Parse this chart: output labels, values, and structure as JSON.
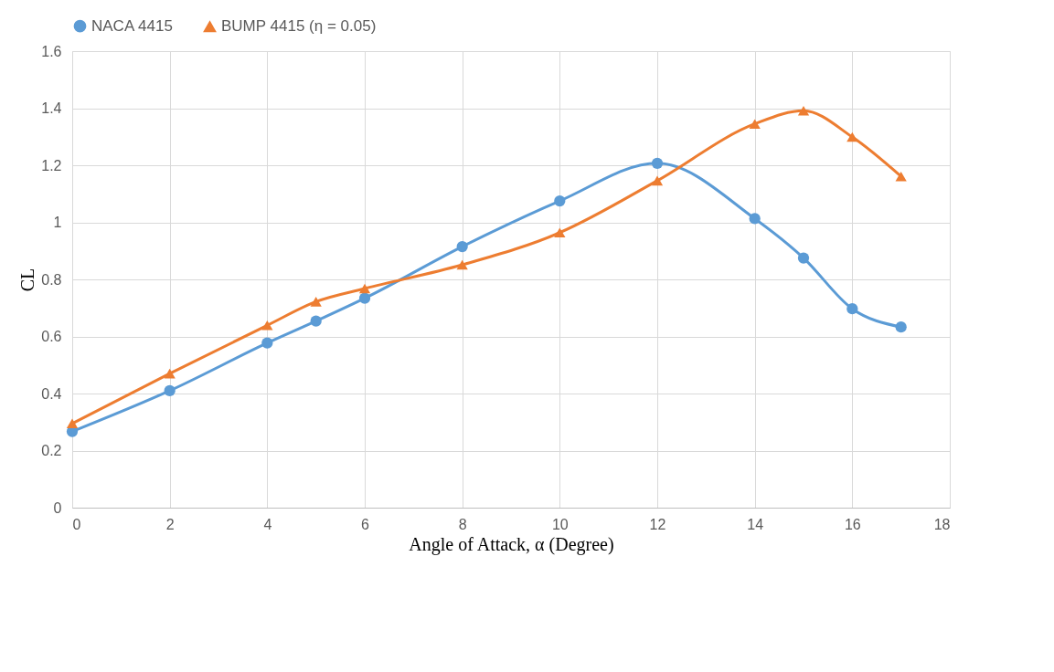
{
  "chart_data": {
    "type": "line",
    "xlabel": "Angle of Attack, α (Degree)",
    "ylabel": "CL",
    "x": [
      0,
      2,
      4,
      5,
      6,
      8,
      10,
      12,
      14,
      15,
      16,
      17
    ],
    "series": [
      {
        "name": "NACA 4415",
        "color": "#5b9bd5",
        "marker": "circle",
        "values": [
          0.267,
          0.41,
          0.577,
          0.654,
          0.734,
          0.915,
          1.075,
          1.207,
          1.013,
          0.875,
          0.697,
          0.633
        ]
      },
      {
        "name": "BUMP 4415 (η = 0.05)",
        "color": "#ed7d31",
        "marker": "triangle",
        "values": [
          0.295,
          0.47,
          0.639,
          0.722,
          0.768,
          0.851,
          0.964,
          1.146,
          1.345,
          1.391,
          1.299,
          1.161
        ]
      }
    ],
    "xlim": [
      0,
      18
    ],
    "xticks": [
      0,
      2,
      4,
      6,
      8,
      10,
      12,
      14,
      16,
      18
    ],
    "ylim": [
      0,
      1.6
    ],
    "yticks": [
      0,
      {
        "value": 0.2,
        "label": "0.2"
      },
      {
        "value": 0.4,
        "label": "0.4"
      },
      {
        "value": 0.6,
        "label": "0.6"
      },
      {
        "value": 0.8,
        "label": "0.8"
      },
      1,
      {
        "value": 1.2,
        "label": "1.2"
      },
      {
        "value": 1.4,
        "label": "1.4"
      },
      {
        "value": 1.6,
        "label": "1.6"
      }
    ],
    "grid": true,
    "legend": "top",
    "line_style": "solid"
  }
}
